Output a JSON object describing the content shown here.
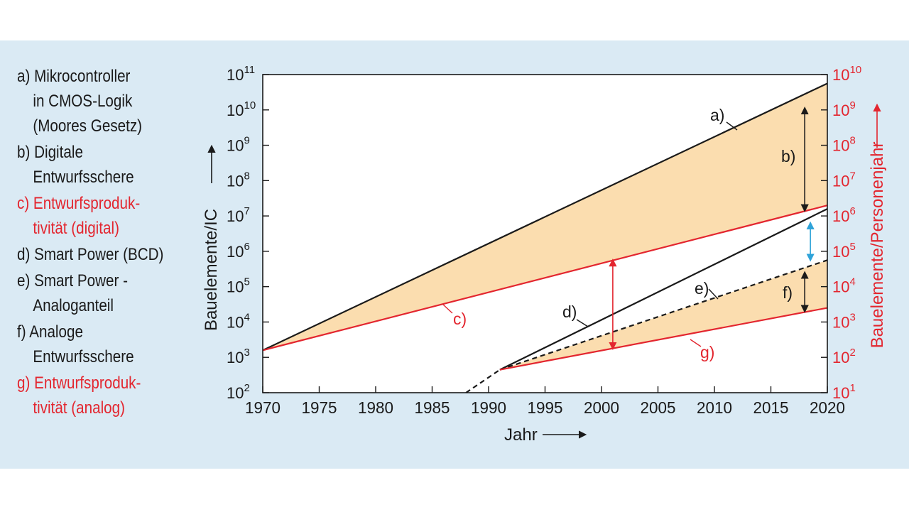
{
  "colors": {
    "background_panel": "#daeaf4",
    "black": "#1a1a1a",
    "red": "#e3262f",
    "fill": "#fbddaf",
    "blue_arrow": "#2fa3d9"
  },
  "legend": [
    {
      "lines": [
        "a) Mikrocontroller",
        "in CMOS-Logik",
        "(Moores Gesetz)"
      ],
      "color": "black"
    },
    {
      "lines": [
        "b) Digitale",
        "Entwurfsschere"
      ],
      "color": "black"
    },
    {
      "lines": [
        "c) Entwurfsproduk-",
        "tivität (digital)"
      ],
      "color": "red"
    },
    {
      "lines": [
        "d) Smart Power (BCD)"
      ],
      "color": "black"
    },
    {
      "lines": [
        "e) Smart Power -",
        "Analoganteil"
      ],
      "color": "black"
    },
    {
      "lines": [
        "f) Analoge",
        "Entwurfsschere"
      ],
      "color": "black"
    },
    {
      "lines": [
        "g) Entwurfsproduk-",
        "tivität (analog)"
      ],
      "color": "red"
    }
  ],
  "chart_data": {
    "type": "line",
    "xlabel": "Jahr",
    "ylabel_left": "Bauelemente/IC",
    "ylabel_right": "Bauelemente/Personenjahr",
    "x_ticks": [
      1970,
      1975,
      1980,
      1985,
      1990,
      1995,
      2000,
      2005,
      2010,
      2015,
      2020
    ],
    "xlim": [
      1970,
      2020
    ],
    "y_left": {
      "scale": "log",
      "exponents": [
        2,
        3,
        4,
        5,
        6,
        7,
        8,
        9,
        10,
        11
      ],
      "ylim": [
        "1e2",
        "1e11"
      ]
    },
    "y_right": {
      "scale": "log",
      "exponents": [
        1,
        2,
        3,
        4,
        5,
        6,
        7,
        8,
        9,
        10
      ],
      "ylim": [
        "1e1",
        "1e10"
      ]
    },
    "series": [
      {
        "label": "a)",
        "axis": "left",
        "style": "solid",
        "color": "black",
        "x": [
          1970,
          2020
        ],
        "log10_y": [
          3.2,
          10.75
        ]
      },
      {
        "label": "c)",
        "axis": "left",
        "style": "solid",
        "color": "red",
        "x": [
          1970,
          2020
        ],
        "log10_y": [
          3.2,
          7.3
        ]
      },
      {
        "label": "d)",
        "axis": "left",
        "style": "solid",
        "color": "black",
        "x": [
          1991,
          2020
        ],
        "log10_y": [
          2.65,
          7.2
        ]
      },
      {
        "label": "",
        "axis": "left",
        "style": "dashed",
        "color": "black",
        "x": [
          1988,
          1991
        ],
        "log10_y": [
          2.0,
          2.65
        ]
      },
      {
        "label": "e)",
        "axis": "left",
        "style": "dashed",
        "color": "black",
        "x": [
          1991,
          2020
        ],
        "log10_y": [
          2.65,
          5.75
        ]
      },
      {
        "label": "g)",
        "axis": "left",
        "style": "solid",
        "color": "red",
        "x": [
          1991,
          2020
        ],
        "log10_y": [
          2.65,
          4.4
        ]
      }
    ],
    "annotations": [
      {
        "label": "b)",
        "type": "double-arrow",
        "color": "black",
        "x": 2018,
        "log10_y": [
          10.05,
          7.15
        ]
      },
      {
        "label": "",
        "type": "double-arrow",
        "color": "red",
        "x": 2001,
        "log10_y": [
          5.75,
          3.25
        ]
      },
      {
        "label": "",
        "type": "double-arrow",
        "color": "blue",
        "x": 2018.5,
        "log10_y": [
          6.8,
          5.75
        ]
      },
      {
        "label": "f)",
        "type": "double-arrow",
        "color": "black",
        "x": 2018,
        "log10_y": [
          5.4,
          4.3
        ]
      }
    ],
    "shaded_regions": [
      {
        "between": [
          "a)",
          "c)"
        ],
        "color": "fill"
      },
      {
        "between": [
          "e)",
          "g)"
        ],
        "color": "fill"
      }
    ]
  }
}
